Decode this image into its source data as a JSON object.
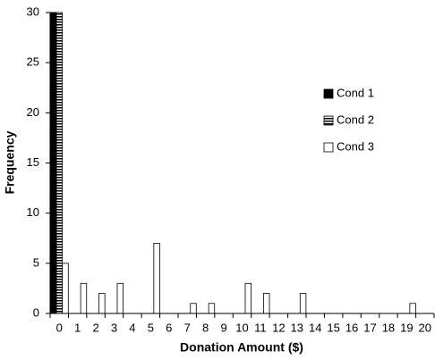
{
  "chart_data": {
    "type": "bar",
    "x_label": "Donation Amount ($)",
    "y_label": "Frequency",
    "categories": [
      "0",
      "1",
      "2",
      "3",
      "4",
      "5",
      "6",
      "7",
      "8",
      "9",
      "10",
      "11",
      "12",
      "13",
      "14",
      "15",
      "16",
      "17",
      "18",
      "19",
      "20"
    ],
    "series": [
      {
        "name": "Cond 1",
        "color": "#000000",
        "values": [
          30,
          0,
          0,
          0,
          0,
          0,
          0,
          0,
          0,
          0,
          0,
          0,
          0,
          0,
          0,
          0,
          0,
          0,
          0,
          0,
          0
        ]
      },
      {
        "name": "Cond 2",
        "color": "#000000",
        "pattern": "horizontal-lines",
        "values": [
          30,
          0,
          0,
          0,
          0,
          0,
          0,
          0,
          0,
          0,
          0,
          0,
          0,
          0,
          0,
          0,
          0,
          0,
          0,
          0,
          0
        ]
      },
      {
        "name": "Cond 3",
        "color": "#ffffff",
        "values": [
          5,
          3,
          2,
          3,
          0,
          7,
          0,
          1,
          1,
          0,
          3,
          2,
          0,
          2,
          0,
          0,
          0,
          0,
          0,
          1,
          0
        ]
      }
    ],
    "ylim": [
      0,
      30
    ],
    "yticks": [
      0,
      5,
      10,
      15,
      20,
      25,
      30
    ],
    "grid": false,
    "legend": "right"
  }
}
